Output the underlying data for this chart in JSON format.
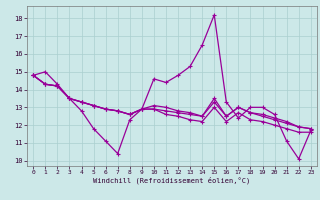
{
  "xlabel": "Windchill (Refroidissement éolien,°C)",
  "background_color": "#cce8e8",
  "grid_color": "#aacfcf",
  "line_color": "#990099",
  "x_ticks": [
    0,
    1,
    2,
    3,
    4,
    5,
    6,
    7,
    8,
    9,
    10,
    11,
    12,
    13,
    14,
    15,
    16,
    17,
    18,
    19,
    20,
    21,
    22,
    23
  ],
  "y_ticks": [
    10,
    11,
    12,
    13,
    14,
    15,
    16,
    17,
    18
  ],
  "ylim": [
    9.7,
    18.7
  ],
  "xlim": [
    -0.5,
    23.5
  ],
  "series1_y": [
    14.8,
    15.0,
    14.3,
    13.5,
    12.8,
    11.8,
    11.1,
    10.4,
    12.3,
    12.9,
    14.6,
    14.4,
    14.8,
    15.3,
    16.5,
    18.2,
    13.3,
    12.4,
    13.0,
    13.0,
    12.6,
    11.1,
    10.1,
    11.7
  ],
  "series2_y": [
    14.8,
    14.3,
    14.2,
    13.5,
    13.3,
    13.1,
    12.9,
    12.8,
    12.6,
    12.9,
    12.9,
    12.8,
    12.7,
    12.6,
    12.5,
    13.3,
    12.5,
    13.0,
    12.7,
    12.6,
    12.4,
    12.2,
    11.9,
    11.8
  ],
  "series3_y": [
    14.8,
    14.3,
    14.2,
    13.5,
    13.3,
    13.1,
    12.9,
    12.8,
    12.6,
    12.9,
    12.9,
    12.6,
    12.5,
    12.3,
    12.2,
    13.0,
    12.2,
    12.7,
    12.3,
    12.2,
    12.0,
    11.8,
    11.6,
    11.6
  ],
  "series4_y": [
    14.8,
    14.3,
    14.2,
    13.5,
    13.3,
    13.1,
    12.9,
    12.8,
    12.6,
    12.9,
    13.1,
    13.0,
    12.8,
    12.7,
    12.5,
    13.5,
    12.5,
    13.0,
    12.7,
    12.5,
    12.3,
    12.1,
    11.9,
    11.8
  ]
}
